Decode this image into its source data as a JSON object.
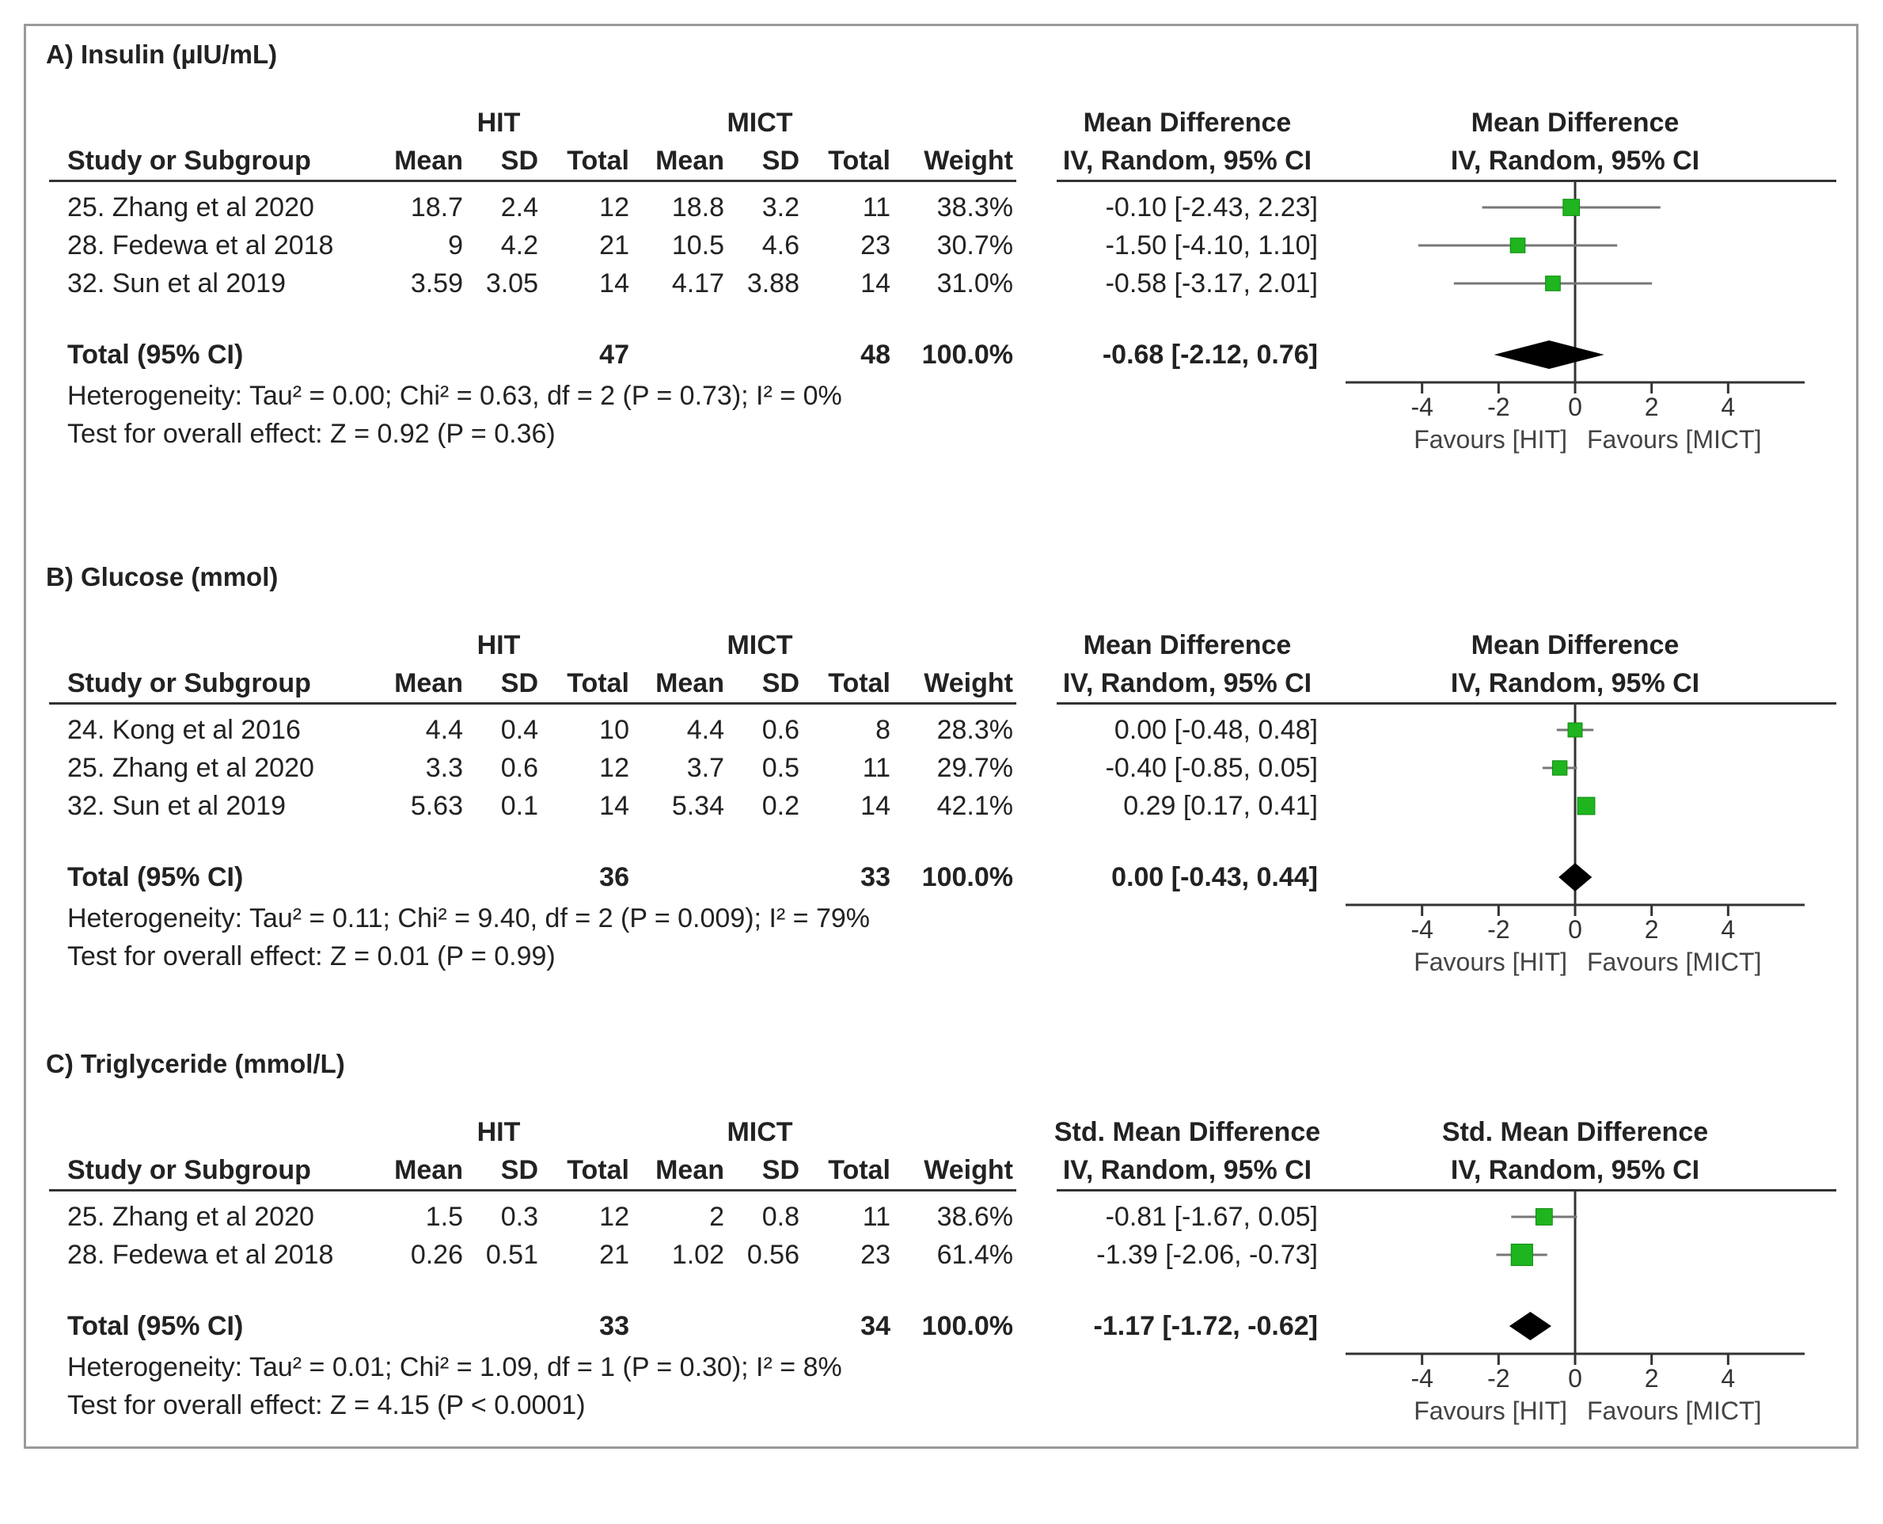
{
  "chart_data": [
    {
      "type": "forest",
      "panel_title": "A) Insulin (µIU/mL)",
      "group1": "HIT",
      "group2": "MICT",
      "columns": [
        "Study or Subgroup",
        "Mean",
        "SD",
        "Total",
        "Mean",
        "SD",
        "Total",
        "Weight"
      ],
      "effect_header": "Mean Difference",
      "effect_subheader": "IV, Random, 95% CI",
      "studies": [
        {
          "name": "25. Zhang et al 2020",
          "m1": "18.7",
          "sd1": "2.4",
          "n1": "12",
          "m2": "18.8",
          "sd2": "3.2",
          "n2": "11",
          "weight": "38.3%",
          "ci_text": "-0.10 [-2.43, 2.23]",
          "est": -0.1,
          "lo": -2.43,
          "hi": 2.23,
          "w": 38.3
        },
        {
          "name": "28. Fedewa et al 2018",
          "m1": "9",
          "sd1": "4.2",
          "n1": "21",
          "m2": "10.5",
          "sd2": "4.6",
          "n2": "23",
          "weight": "30.7%",
          "ci_text": "-1.50 [-4.10, 1.10]",
          "est": -1.5,
          "lo": -4.1,
          "hi": 1.1,
          "w": 30.7
        },
        {
          "name": "32. Sun et al 2019",
          "m1": "3.59",
          "sd1": "3.05",
          "n1": "14",
          "m2": "4.17",
          "sd2": "3.88",
          "n2": "14",
          "weight": "31.0%",
          "ci_text": "-0.58 [-3.17, 2.01]",
          "est": -0.58,
          "lo": -3.17,
          "hi": 2.01,
          "w": 31.0
        }
      ],
      "total": {
        "label": "Total (95% CI)",
        "n1": "47",
        "n2": "48",
        "weight": "100.0%",
        "ci_text": "-0.68 [-2.12, 0.76]",
        "est": -0.68,
        "lo": -2.12,
        "hi": 0.76
      },
      "heterogeneity": "Heterogeneity: Tau² = 0.00; Chi² = 0.63, df = 2 (P = 0.73); I² = 0%",
      "overall_effect": "Test for overall effect: Z = 0.92 (P = 0.36)",
      "axis": {
        "range": [
          -6,
          6
        ],
        "ticks": [
          -4,
          -2,
          0,
          2,
          4
        ],
        "tick_labels": [
          "-4",
          "-2",
          "0",
          "2",
          "4"
        ]
      },
      "favours_left": "Favours [HIT]",
      "favours_right": "Favours [MICT]"
    },
    {
      "type": "forest",
      "panel_title": "B) Glucose (mmol)",
      "group1": "HIT",
      "group2": "MICT",
      "columns": [
        "Study or Subgroup",
        "Mean",
        "SD",
        "Total",
        "Mean",
        "SD",
        "Total",
        "Weight"
      ],
      "effect_header": "Mean Difference",
      "effect_subheader": "IV, Random, 95% CI",
      "studies": [
        {
          "name": "24. Kong et al 2016",
          "m1": "4.4",
          "sd1": "0.4",
          "n1": "10",
          "m2": "4.4",
          "sd2": "0.6",
          "n2": "8",
          "weight": "28.3%",
          "ci_text": "0.00 [-0.48, 0.48]",
          "est": 0.0,
          "lo": -0.48,
          "hi": 0.48,
          "w": 28.3
        },
        {
          "name": "25. Zhang et al 2020",
          "m1": "3.3",
          "sd1": "0.6",
          "n1": "12",
          "m2": "3.7",
          "sd2": "0.5",
          "n2": "11",
          "weight": "29.7%",
          "ci_text": "-0.40 [-0.85, 0.05]",
          "est": -0.4,
          "lo": -0.85,
          "hi": 0.05,
          "w": 29.7
        },
        {
          "name": "32. Sun et al 2019",
          "m1": "5.63",
          "sd1": "0.1",
          "n1": "14",
          "m2": "5.34",
          "sd2": "0.2",
          "n2": "14",
          "weight": "42.1%",
          "ci_text": "0.29 [0.17, 0.41]",
          "est": 0.29,
          "lo": 0.17,
          "hi": 0.41,
          "w": 42.1
        }
      ],
      "total": {
        "label": "Total (95% CI)",
        "n1": "36",
        "n2": "33",
        "weight": "100.0%",
        "ci_text": "0.00 [-0.43, 0.44]",
        "est": 0.0,
        "lo": -0.43,
        "hi": 0.44
      },
      "heterogeneity": "Heterogeneity: Tau² = 0.11; Chi² = 9.40, df = 2 (P = 0.009); I² = 79%",
      "overall_effect": "Test for overall effect: Z = 0.01 (P = 0.99)",
      "axis": {
        "range": [
          -6,
          6
        ],
        "ticks": [
          -4,
          -2,
          0,
          2,
          4
        ],
        "tick_labels": [
          "-4",
          "-2",
          "0",
          "2",
          "4"
        ]
      },
      "favours_left": "Favours [HIT]",
      "favours_right": "Favours [MICT]"
    },
    {
      "type": "forest",
      "panel_title": "C) Triglyceride (mmol/L)",
      "group1": "HIT",
      "group2": "MICT",
      "columns": [
        "Study or Subgroup",
        "Mean",
        "SD",
        "Total",
        "Mean",
        "SD",
        "Total",
        "Weight"
      ],
      "effect_header": "Std. Mean Difference",
      "effect_subheader": "IV, Random, 95% CI",
      "studies": [
        {
          "name": "25. Zhang et al 2020",
          "m1": "1.5",
          "sd1": "0.3",
          "n1": "12",
          "m2": "2",
          "sd2": "0.8",
          "n2": "11",
          "weight": "38.6%",
          "ci_text": "-0.81 [-1.67, 0.05]",
          "est": -0.81,
          "lo": -1.67,
          "hi": 0.05,
          "w": 38.6
        },
        {
          "name": "28. Fedewa et al 2018",
          "m1": "0.26",
          "sd1": "0.51",
          "n1": "21",
          "m2": "1.02",
          "sd2": "0.56",
          "n2": "23",
          "weight": "61.4%",
          "ci_text": "-1.39 [-2.06, -0.73]",
          "est": -1.39,
          "lo": -2.06,
          "hi": -0.73,
          "w": 61.4
        }
      ],
      "total": {
        "label": "Total (95% CI)",
        "n1": "33",
        "n2": "34",
        "weight": "100.0%",
        "ci_text": "-1.17 [-1.72, -0.62]",
        "est": -1.17,
        "lo": -1.72,
        "hi": -0.62
      },
      "heterogeneity": "Heterogeneity: Tau² = 0.01; Chi² = 1.09, df = 1 (P = 0.30); I² = 8%",
      "overall_effect": "Test for overall effect: Z = 4.15 (P < 0.0001)",
      "axis": {
        "range": [
          -6,
          6
        ],
        "ticks": [
          -4,
          -2,
          0,
          2,
          4
        ],
        "tick_labels": [
          "-4",
          "-2",
          "0",
          "2",
          "4"
        ]
      },
      "favours_left": "Favours [HIT]",
      "favours_right": "Favours [MICT]"
    }
  ]
}
